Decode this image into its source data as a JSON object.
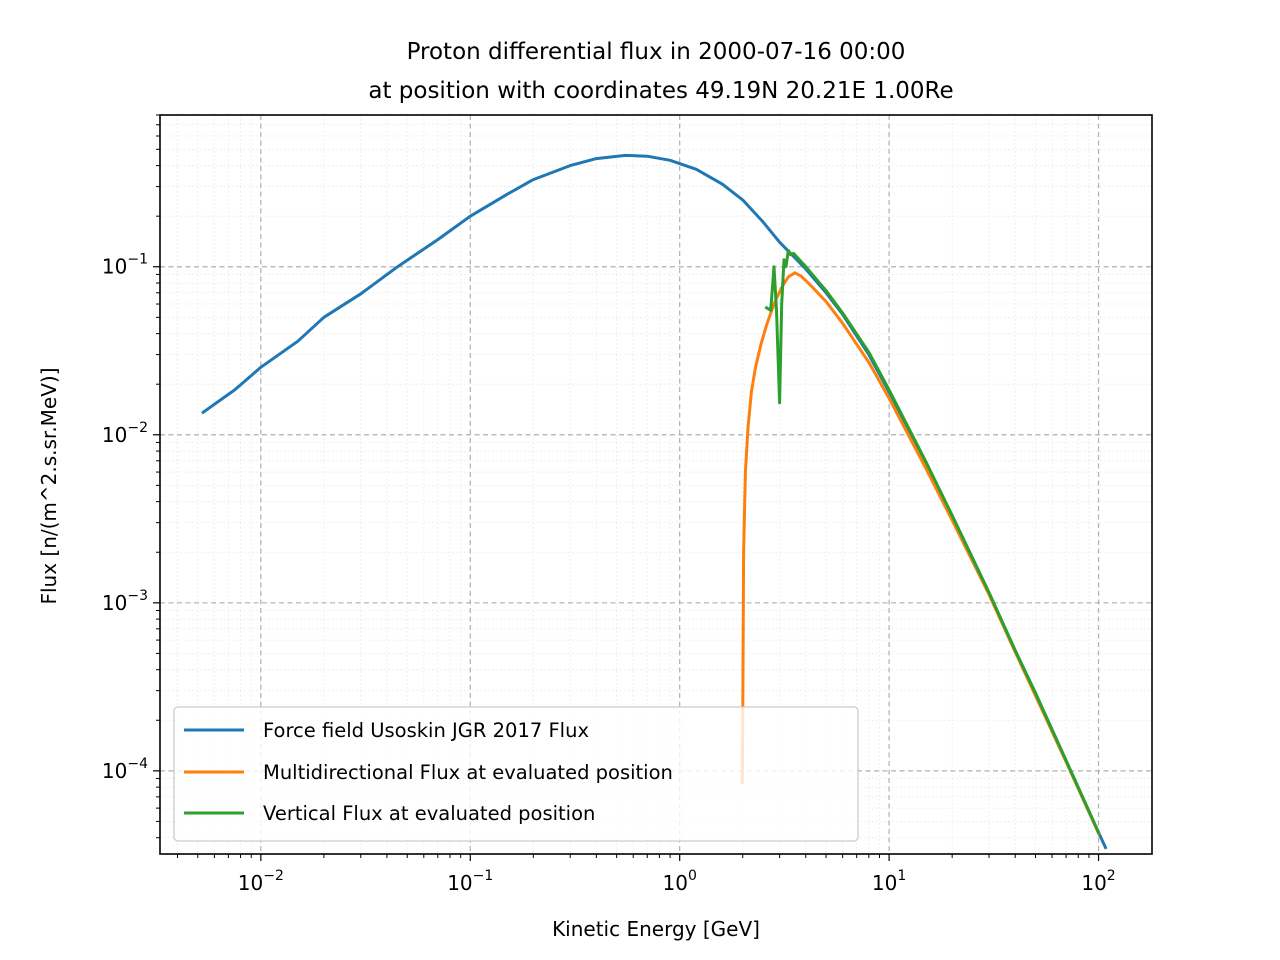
{
  "chart_data": {
    "type": "line",
    "title": "Proton differential flux in 2000-07-16 00:00\nat position with coordinates 49.19N 20.21E 1.00Re",
    "title_lines": [
      "Proton differential flux in 2000-07-16 00:00",
      "at position with coordinates 49.19N 20.21E 1.00Re"
    ],
    "xlabel": "Kinetic Energy [GeV]",
    "ylabel": "Flux [n/(m^2.s.sr.MeV)]",
    "xscale": "log",
    "yscale": "log",
    "xlim": [
      0.0033,
      180
    ],
    "ylim": [
      3.2e-05,
      0.8
    ],
    "x_major_ticks": [
      {
        "value": 0.01,
        "base": "10",
        "exp": "−2"
      },
      {
        "value": 0.1,
        "base": "10",
        "exp": "−1"
      },
      {
        "value": 1,
        "base": "10",
        "exp": "0"
      },
      {
        "value": 10,
        "base": "10",
        "exp": "1"
      },
      {
        "value": 100,
        "base": "10",
        "exp": "2"
      }
    ],
    "y_major_ticks": [
      {
        "value": 0.0001,
        "base": "10",
        "exp": "−4"
      },
      {
        "value": 0.001,
        "base": "10",
        "exp": "−3"
      },
      {
        "value": 0.01,
        "base": "10",
        "exp": "−2"
      },
      {
        "value": 0.1,
        "base": "10",
        "exp": "−1"
      }
    ],
    "grid": true,
    "legend_position": "bottom-left",
    "series": [
      {
        "name": "Force field Usoskin JGR 2017 Flux",
        "color": "#1f77b4",
        "points": [
          [
            0.0053,
            0.0136
          ],
          [
            0.0075,
            0.0185
          ],
          [
            0.01,
            0.0252
          ],
          [
            0.015,
            0.036
          ],
          [
            0.02,
            0.05
          ],
          [
            0.03,
            0.069
          ],
          [
            0.045,
            0.1
          ],
          [
            0.07,
            0.145
          ],
          [
            0.1,
            0.2
          ],
          [
            0.15,
            0.27
          ],
          [
            0.2,
            0.33
          ],
          [
            0.3,
            0.4
          ],
          [
            0.4,
            0.44
          ],
          [
            0.55,
            0.46
          ],
          [
            0.7,
            0.455
          ],
          [
            0.9,
            0.43
          ],
          [
            1.2,
            0.38
          ],
          [
            1.6,
            0.31
          ],
          [
            2.0,
            0.25
          ],
          [
            2.5,
            0.185
          ],
          [
            3.0,
            0.14
          ],
          [
            3.5,
            0.115
          ],
          [
            4.0,
            0.097
          ],
          [
            5.0,
            0.07
          ],
          [
            6.0,
            0.052
          ],
          [
            8.0,
            0.03
          ],
          [
            10.0,
            0.018
          ],
          [
            15.0,
            0.0068
          ],
          [
            20.0,
            0.0033
          ],
          [
            30.0,
            0.00115
          ],
          [
            40.0,
            0.00052
          ],
          [
            50.0,
            0.00029
          ],
          [
            70.0,
            0.000115
          ],
          [
            100.0,
            4.3e-05
          ],
          [
            108.0,
            3.5e-05
          ]
        ]
      },
      {
        "name": "Multidirectional Flux at evaluated position",
        "color": "#ff7f0e",
        "points": [
          [
            1.99,
            8.5e-05
          ],
          [
            2.0,
            0.00018
          ],
          [
            2.02,
            0.002
          ],
          [
            2.06,
            0.006
          ],
          [
            2.12,
            0.011
          ],
          [
            2.2,
            0.018
          ],
          [
            2.3,
            0.025
          ],
          [
            2.45,
            0.035
          ],
          [
            2.6,
            0.045
          ],
          [
            2.75,
            0.055
          ],
          [
            2.9,
            0.065
          ],
          [
            3.1,
            0.077
          ],
          [
            3.3,
            0.087
          ],
          [
            3.55,
            0.092
          ],
          [
            3.8,
            0.088
          ],
          [
            4.2,
            0.078
          ],
          [
            5.0,
            0.062
          ],
          [
            6.0,
            0.046
          ],
          [
            8.0,
            0.027
          ],
          [
            10.0,
            0.0165
          ],
          [
            15.0,
            0.0063
          ],
          [
            20.0,
            0.0031
          ],
          [
            30.0,
            0.00112
          ],
          [
            40.0,
            0.00051
          ],
          [
            50.0,
            0.00028
          ],
          [
            70.0,
            0.000113
          ],
          [
            100.0,
            4.25e-05
          ]
        ]
      },
      {
        "name": "Vertical Flux at evaluated position",
        "color": "#2ca02c",
        "points": [
          [
            2.6,
            0.057
          ],
          [
            2.72,
            0.055
          ],
          [
            2.82,
            0.1
          ],
          [
            2.9,
            0.055
          ],
          [
            3.0,
            0.0155
          ],
          [
            3.07,
            0.06
          ],
          [
            3.15,
            0.11
          ],
          [
            3.22,
            0.1
          ],
          [
            3.3,
            0.125
          ],
          [
            3.38,
            0.118
          ],
          [
            3.5,
            0.12
          ],
          [
            4.0,
            0.1
          ],
          [
            5.0,
            0.072
          ],
          [
            6.0,
            0.053
          ],
          [
            8.0,
            0.031
          ],
          [
            10.0,
            0.0185
          ],
          [
            15.0,
            0.0069
          ],
          [
            20.0,
            0.0033
          ],
          [
            30.0,
            0.00115
          ],
          [
            40.0,
            0.00052
          ],
          [
            50.0,
            0.00029
          ],
          [
            70.0,
            0.000115
          ],
          [
            100.0,
            4.3e-05
          ]
        ]
      }
    ]
  }
}
